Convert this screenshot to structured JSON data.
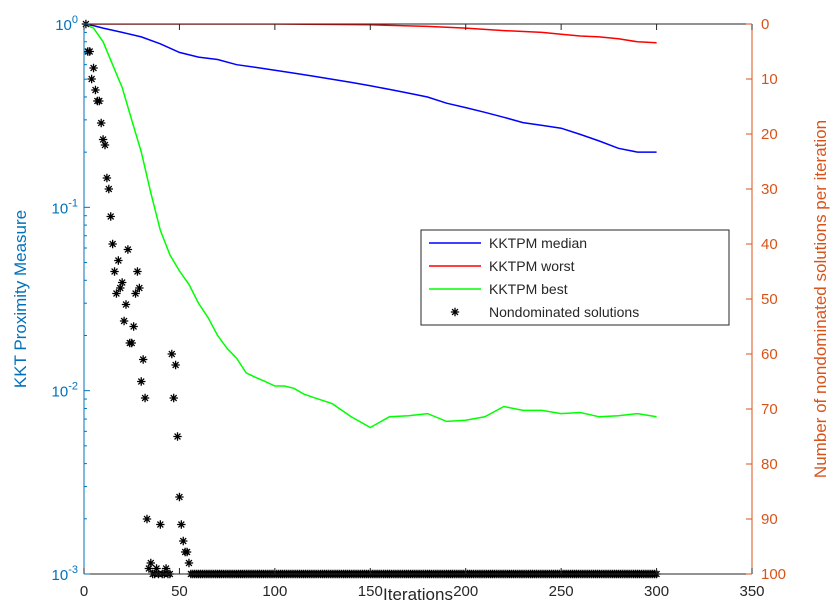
{
  "chart_data": {
    "type": "line",
    "xlabel": "Iterations",
    "ylabel_left": "KKT Proximity Measure",
    "ylabel_right": "Number of nondominated solutions per iteration",
    "x_range": [
      0,
      350
    ],
    "x_ticks": [
      0,
      50,
      100,
      150,
      200,
      250,
      300,
      350
    ],
    "y_left_scale": "log",
    "y_left_range": [
      0.001,
      1
    ],
    "y_left_ticks": [
      {
        "base": "10",
        "exp": "-3"
      },
      {
        "base": "10",
        "exp": "-2"
      },
      {
        "base": "10",
        "exp": "-1"
      },
      {
        "base": "10",
        "exp": "0"
      }
    ],
    "y_right_range": [
      0,
      100
    ],
    "y_right_reversed": true,
    "y_right_ticks": [
      0,
      10,
      20,
      30,
      40,
      50,
      60,
      70,
      80,
      90,
      100
    ],
    "left_axis_color": "#0072BD",
    "right_axis_color": "#D95319",
    "grid": false,
    "legend_position": "center-right",
    "series": [
      {
        "name": "KKTPM median",
        "axis": "left",
        "color": "#0000FF",
        "style": "line",
        "x": [
          0,
          5,
          10,
          20,
          30,
          40,
          50,
          60,
          70,
          80,
          90,
          100,
          110,
          120,
          130,
          140,
          150,
          160,
          170,
          180,
          190,
          200,
          210,
          220,
          230,
          240,
          250,
          260,
          270,
          280,
          290,
          300
        ],
        "y": [
          1.0,
          0.98,
          0.95,
          0.9,
          0.85,
          0.78,
          0.7,
          0.66,
          0.64,
          0.6,
          0.58,
          0.56,
          0.54,
          0.52,
          0.5,
          0.48,
          0.46,
          0.44,
          0.42,
          0.4,
          0.37,
          0.35,
          0.33,
          0.31,
          0.29,
          0.28,
          0.27,
          0.25,
          0.23,
          0.21,
          0.2,
          0.2
        ]
      },
      {
        "name": "KKTPM worst",
        "axis": "left",
        "color": "#FF0000",
        "style": "line",
        "x": [
          0,
          50,
          100,
          150,
          180,
          200,
          220,
          240,
          250,
          260,
          270,
          280,
          290,
          300
        ],
        "y": [
          1.0,
          1.0,
          1.0,
          0.99,
          0.97,
          0.95,
          0.92,
          0.9,
          0.88,
          0.86,
          0.85,
          0.83,
          0.8,
          0.79
        ]
      },
      {
        "name": "KKTPM best",
        "axis": "left",
        "color": "#00FF00",
        "style": "line",
        "x": [
          0,
          5,
          10,
          15,
          20,
          25,
          30,
          35,
          40,
          45,
          50,
          55,
          60,
          65,
          70,
          75,
          80,
          85,
          90,
          95,
          100,
          105,
          110,
          115,
          120,
          130,
          140,
          150,
          160,
          170,
          180,
          190,
          200,
          210,
          220,
          230,
          240,
          250,
          260,
          270,
          280,
          290,
          300
        ],
        "y": [
          1.0,
          0.95,
          0.8,
          0.6,
          0.45,
          0.3,
          0.2,
          0.12,
          0.075,
          0.055,
          0.045,
          0.038,
          0.03,
          0.025,
          0.02,
          0.017,
          0.015,
          0.0125,
          0.0118,
          0.0112,
          0.0106,
          0.0106,
          0.0103,
          0.0096,
          0.0092,
          0.0085,
          0.0072,
          0.0063,
          0.0072,
          0.0073,
          0.0075,
          0.0068,
          0.0069,
          0.0072,
          0.0082,
          0.0078,
          0.0078,
          0.0075,
          0.0076,
          0.0072,
          0.0073,
          0.0075,
          0.0072
        ]
      },
      {
        "name": "Nondominated solutions",
        "axis": "right",
        "color": "#000000",
        "style": "markers",
        "x": [
          1,
          2,
          3,
          4,
          5,
          6,
          7,
          8,
          9,
          10,
          11,
          12,
          13,
          14,
          15,
          16,
          17,
          18,
          19,
          20,
          21,
          22,
          23,
          24,
          25,
          26,
          27,
          28,
          29,
          30,
          31,
          32,
          33,
          34,
          35,
          36,
          37,
          38,
          39,
          40,
          41,
          42,
          43,
          44,
          45,
          46,
          47,
          48,
          49,
          50,
          51,
          52,
          53,
          54,
          55,
          56
        ],
        "y": [
          0,
          5,
          5,
          10,
          8,
          12,
          14,
          14,
          18,
          21,
          22,
          28,
          30,
          35,
          40,
          45,
          49,
          43,
          48,
          47,
          54,
          51,
          41,
          58,
          58,
          55,
          49,
          45,
          48,
          65,
          61,
          68,
          90,
          99,
          98,
          100,
          100,
          99,
          100,
          91,
          100,
          100,
          99,
          100,
          100,
          60,
          68,
          62,
          75,
          86,
          91,
          94,
          96,
          96,
          98,
          100
        ]
      }
    ],
    "nondominated_tail": {
      "x_start": 57,
      "x_end": 300,
      "value": 100
    }
  }
}
